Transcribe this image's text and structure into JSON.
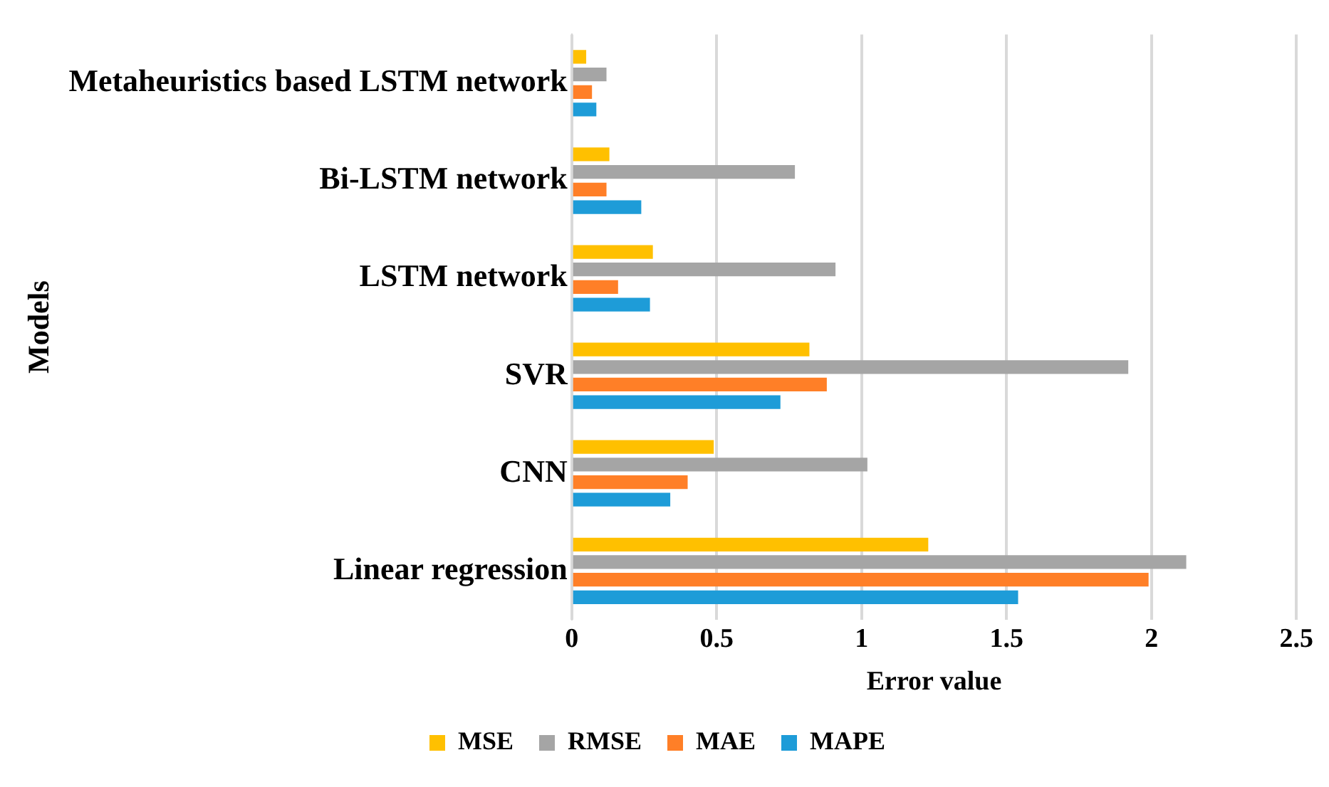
{
  "chart_data": {
    "type": "bar",
    "orientation": "horizontal",
    "xlabel": "Error value",
    "ylabel": "Models",
    "categories": [
      "Metaheuristics based LSTM network",
      "Bi-LSTM network",
      "LSTM network",
      "SVR",
      "CNN",
      "Linear regression"
    ],
    "series": [
      {
        "name": "MSE",
        "color": "#ffc000",
        "values": [
          0.05,
          0.13,
          0.28,
          0.82,
          0.49,
          1.23
        ]
      },
      {
        "name": "RMSE",
        "color": "#a5a5a5",
        "values": [
          0.12,
          0.77,
          0.91,
          1.92,
          1.02,
          2.12
        ]
      },
      {
        "name": "MAE",
        "color": "#ff7f27",
        "values": [
          0.07,
          0.12,
          0.16,
          0.88,
          0.4,
          1.99
        ]
      },
      {
        "name": "MAPE",
        "color": "#1e9cd8",
        "values": [
          0.085,
          0.24,
          0.27,
          0.72,
          0.34,
          1.54
        ]
      }
    ],
    "xlim": [
      0,
      2.5
    ],
    "xticks": [
      0,
      0.5,
      1,
      1.5,
      2,
      2.5
    ],
    "grid": "x",
    "legend": "bottom"
  }
}
